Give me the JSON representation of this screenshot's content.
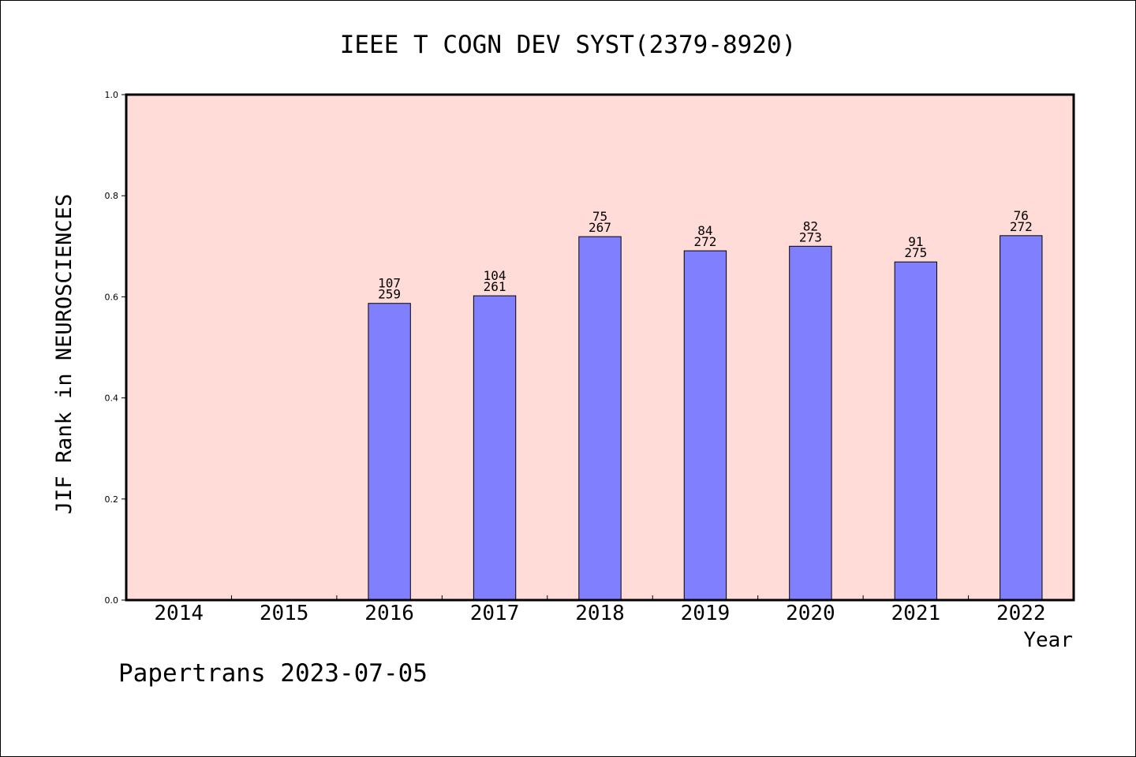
{
  "chart_data": {
    "type": "bar",
    "title": "IEEE T COGN DEV SYST(2379-8920)",
    "ylabel": "JIF Rank in NEUROSCIENCES",
    "xlabel": "Year",
    "categories": [
      "2014",
      "2015",
      "2016",
      "2017",
      "2018",
      "2019",
      "2020",
      "2021",
      "2022"
    ],
    "values": [
      null,
      null,
      0.587,
      0.602,
      0.719,
      0.691,
      0.7,
      0.669,
      0.721
    ],
    "rank": [
      null,
      null,
      "107",
      "104",
      "75",
      "84",
      "82",
      "91",
      "76"
    ],
    "total": [
      null,
      null,
      "259",
      "261",
      "267",
      "272",
      "273",
      "275",
      "272"
    ],
    "ylim": [
      0,
      1
    ],
    "yticks": [
      "0.0",
      "0.2",
      "0.4",
      "0.6",
      "0.8",
      "1.0"
    ],
    "grid": false,
    "colors": {
      "plot_background": "#ffdcd8",
      "bar_fill": "#8080ff",
      "bar_stroke": "#000000"
    }
  },
  "footer": {
    "text": "Papertrans 2023-07-05"
  }
}
